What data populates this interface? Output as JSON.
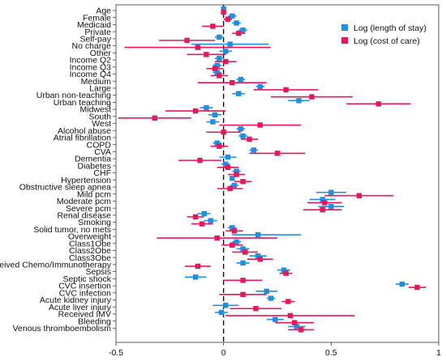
{
  "chart_data": {
    "type": "scatter",
    "subtype": "forest-plot-with-error-bars",
    "title": "",
    "xlabel": "",
    "ylabel": "",
    "xlim": [
      -0.5,
      1.0
    ],
    "xticks": [
      -0.5,
      0,
      0.5,
      1
    ],
    "xtick_labels": [
      "-0.5",
      "0",
      "0.5",
      "1"
    ],
    "reference_line": 0,
    "grid": false,
    "legend_position": "top-right",
    "categories": [
      "Age",
      "Female",
      "Medicaid",
      "Private",
      "Self-pay",
      "No charge",
      "Other",
      "Income Q2",
      "Income Q3",
      "Income Q4",
      "Medium",
      "Large",
      "Urban non-teaching",
      "Urban teaching",
      "Midwest",
      "South",
      "West",
      "Alcohol abuse",
      "Atrial fibrillation",
      "COPD",
      "CVA",
      "Dementia",
      "Diabetes",
      "CHF",
      "Hypertension",
      "Obstructive sleep apnea",
      "Mild pcm",
      "Moderate pcm",
      "Severe pcm",
      "Renal disease",
      "Smoking",
      "Solid tumor, no mets",
      "Overweight",
      "Class1Obe",
      "Class2Obe",
      "Class3Obe",
      "Received Chemo/Immunotherapy",
      "Sepsis",
      "Septic shock",
      "CVC insertion",
      "CVC infection",
      "Acute kidney injury",
      "Acute liver injury",
      "Received IMV",
      "Bleeding",
      "Venous thromboembolism"
    ],
    "series": [
      {
        "name": "Log (length of stay)",
        "color": "#1f8fe6",
        "marker": "square",
        "values": [
          0.0,
          0.04,
          0.06,
          0.09,
          -0.02,
          0.03,
          0.01,
          -0.02,
          -0.03,
          -0.03,
          0.08,
          0.17,
          0.07,
          0.35,
          -0.08,
          -0.04,
          -0.05,
          0.08,
          0.09,
          -0.03,
          0.14,
          0.02,
          0.01,
          0.06,
          0.04,
          0.05,
          0.5,
          0.46,
          0.5,
          -0.09,
          -0.06,
          0.04,
          0.16,
          0.06,
          0.09,
          0.16,
          0.09,
          0.28,
          -0.13,
          0.83,
          0.2,
          0.22,
          0.01,
          -0.01,
          0.24,
          0.34
        ],
        "ci_low": [
          -0.01,
          0.02,
          0.04,
          0.07,
          -0.04,
          -0.15,
          -0.02,
          -0.04,
          -0.05,
          -0.05,
          0.06,
          0.15,
          0.04,
          0.3,
          -0.11,
          -0.07,
          -0.08,
          0.06,
          0.07,
          -0.05,
          0.12,
          -0.02,
          -0.01,
          0.04,
          0.03,
          0.03,
          0.43,
          0.4,
          0.44,
          -0.12,
          -0.09,
          0.02,
          0.04,
          0.04,
          0.06,
          0.12,
          0.06,
          0.25,
          -0.18,
          0.8,
          0.15,
          0.2,
          -0.05,
          -0.04,
          0.2,
          0.3
        ],
        "ci_high": [
          0.01,
          0.06,
          0.08,
          0.11,
          0.0,
          0.21,
          0.04,
          0.0,
          -0.01,
          -0.01,
          0.1,
          0.19,
          0.1,
          0.4,
          -0.05,
          -0.01,
          -0.02,
          0.1,
          0.11,
          -0.01,
          0.16,
          0.06,
          0.03,
          0.08,
          0.05,
          0.07,
          0.57,
          0.52,
          0.56,
          -0.06,
          -0.03,
          0.06,
          0.36,
          0.08,
          0.12,
          0.2,
          0.12,
          0.31,
          -0.08,
          0.86,
          0.25,
          0.24,
          0.07,
          0.02,
          0.28,
          0.38
        ]
      },
      {
        "name": "Log (cost of care)",
        "color": "#e8165a",
        "marker": "square",
        "values": [
          0.0,
          0.02,
          -0.05,
          0.07,
          -0.17,
          -0.12,
          -0.08,
          0.01,
          -0.04,
          -0.02,
          0.04,
          0.29,
          0.41,
          0.72,
          -0.13,
          -0.32,
          0.17,
          0.0,
          0.12,
          -0.02,
          0.25,
          -0.11,
          0.02,
          0.06,
          0.09,
          0.03,
          0.63,
          0.47,
          0.46,
          -0.13,
          -0.1,
          0.05,
          -0.03,
          0.04,
          0.1,
          0.17,
          -0.12,
          0.29,
          0.09,
          0.9,
          0.09,
          0.3,
          0.15,
          0.31,
          0.33,
          0.36
        ],
        "ci_low": [
          -0.01,
          0.0,
          -0.1,
          0.04,
          -0.3,
          -0.46,
          -0.17,
          -0.04,
          -0.08,
          -0.06,
          -0.12,
          0.14,
          0.22,
          0.57,
          -0.27,
          -0.49,
          -0.02,
          -0.08,
          0.08,
          -0.06,
          0.12,
          -0.21,
          -0.03,
          0.02,
          0.05,
          -0.03,
          0.47,
          0.39,
          0.37,
          -0.17,
          -0.15,
          0.01,
          -0.31,
          -0.01,
          0.04,
          0.11,
          -0.18,
          0.26,
          0.0,
          0.86,
          -0.02,
          0.27,
          0.03,
          0.01,
          0.24,
          0.3
        ],
        "ci_high": [
          0.01,
          0.04,
          0.0,
          0.1,
          -0.04,
          0.22,
          0.01,
          0.06,
          0.0,
          0.02,
          0.2,
          0.44,
          0.6,
          0.87,
          0.01,
          -0.15,
          0.36,
          0.08,
          0.16,
          0.02,
          0.38,
          -0.01,
          0.07,
          0.1,
          0.13,
          0.09,
          0.79,
          0.55,
          0.55,
          -0.09,
          -0.05,
          0.09,
          0.25,
          0.09,
          0.16,
          0.23,
          -0.06,
          0.32,
          0.18,
          0.94,
          0.2,
          0.33,
          0.27,
          0.61,
          0.42,
          0.42
        ]
      }
    ]
  }
}
